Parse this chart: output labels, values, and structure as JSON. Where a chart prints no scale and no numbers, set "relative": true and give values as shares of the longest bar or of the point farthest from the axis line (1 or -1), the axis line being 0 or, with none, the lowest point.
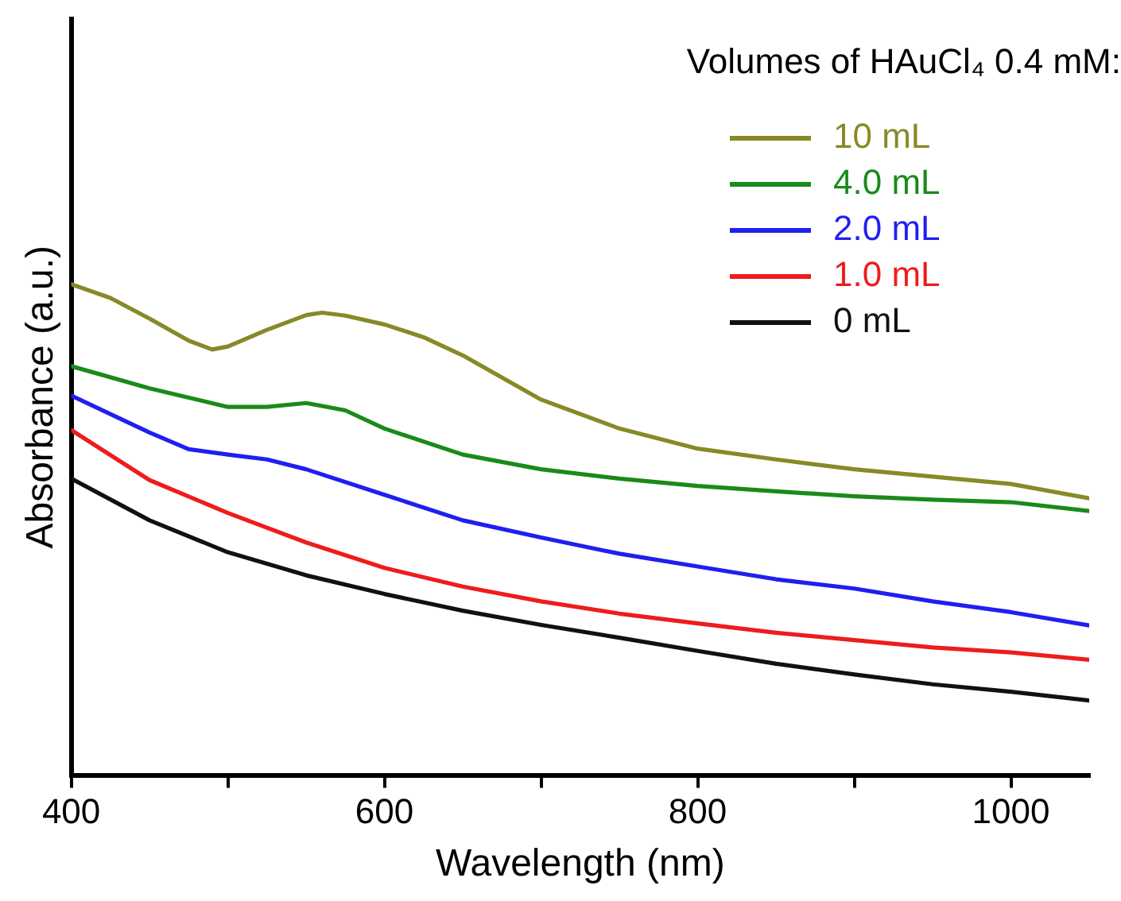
{
  "chart_data": {
    "type": "line",
    "xlabel": "Wavelength (nm)",
    "ylabel": "Absorbance (a.u.)",
    "legend_title": "Volumes of HAuCl₄ 0.4 mM:",
    "legend": "top right",
    "grid": false,
    "marker": "none",
    "line_style": "solid",
    "relative": true,
    "xlim": [
      400,
      1050
    ],
    "xticks": [
      400,
      {
        "value": 500,
        "label": null
      },
      600,
      {
        "value": 700,
        "label": null
      },
      800,
      {
        "value": 900,
        "label": null
      },
      1000
    ],
    "series": [
      {
        "name": "10 mL",
        "color": "#878a26",
        "x": [
          400,
          425,
          450,
          475,
          490,
          500,
          525,
          550,
          560,
          575,
          600,
          625,
          650,
          700,
          750,
          800,
          850,
          900,
          950,
          1000,
          1050
        ],
        "values": [
          1.0,
          0.972,
          0.93,
          0.885,
          0.867,
          0.873,
          0.907,
          0.937,
          0.942,
          0.936,
          0.918,
          0.892,
          0.855,
          0.765,
          0.706,
          0.665,
          0.643,
          0.623,
          0.608,
          0.593,
          0.564
        ]
      },
      {
        "name": "4.0 mL",
        "color": "#1a8a1a",
        "x": [
          400,
          450,
          500,
          525,
          550,
          575,
          600,
          650,
          700,
          750,
          800,
          850,
          900,
          950,
          1000,
          1050
        ],
        "values": [
          0.833,
          0.788,
          0.75,
          0.75,
          0.758,
          0.743,
          0.706,
          0.653,
          0.623,
          0.604,
          0.589,
          0.578,
          0.568,
          0.561,
          0.556,
          0.538
        ]
      },
      {
        "name": "2.0 mL",
        "color": "#1f1ff0",
        "x": [
          400,
          450,
          475,
          500,
          525,
          550,
          600,
          650,
          700,
          750,
          800,
          850,
          900,
          950,
          1000,
          1050
        ],
        "values": [
          0.773,
          0.698,
          0.664,
          0.653,
          0.643,
          0.623,
          0.571,
          0.519,
          0.484,
          0.451,
          0.425,
          0.399,
          0.38,
          0.354,
          0.332,
          0.305
        ]
      },
      {
        "name": "1.0 mL",
        "color": "#ee1c1c",
        "x": [
          400,
          450,
          500,
          550,
          600,
          650,
          700,
          750,
          800,
          850,
          900,
          950,
          1000,
          1050
        ],
        "values": [
          0.703,
          0.601,
          0.534,
          0.474,
          0.422,
          0.384,
          0.354,
          0.329,
          0.309,
          0.29,
          0.275,
          0.26,
          0.25,
          0.235
        ]
      },
      {
        "name": "0 mL",
        "color": "#111111",
        "x": [
          400,
          450,
          500,
          550,
          600,
          650,
          700,
          750,
          800,
          850,
          900,
          950,
          1000,
          1050
        ],
        "values": [
          0.604,
          0.519,
          0.454,
          0.407,
          0.369,
          0.335,
          0.306,
          0.28,
          0.253,
          0.227,
          0.205,
          0.185,
          0.17,
          0.152
        ]
      }
    ]
  }
}
